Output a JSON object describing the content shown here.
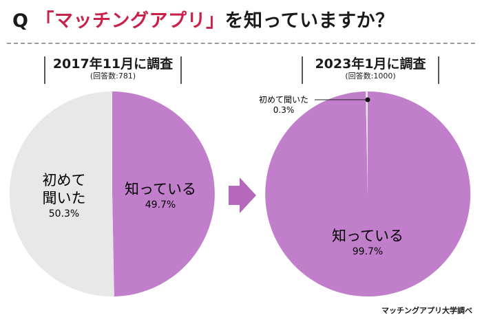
{
  "title": {
    "prefix": "Q",
    "keyword": "「マッチングアプリ」",
    "suffix": "を知っていますか？"
  },
  "colors": {
    "aware": "#c17ecb",
    "heard": "#e8e8e8",
    "accent": "#c8224a",
    "arrow": "#b668bd"
  },
  "chart_data": [
    {
      "type": "pie",
      "title": "2017年11月に調査",
      "subtitle": "(回答数:781)",
      "slices": [
        {
          "label": "知っている",
          "value": 49.7,
          "display": "49.7%",
          "color": "#c17ecb"
        },
        {
          "label": "初めて聞いた",
          "value": 50.3,
          "display": "50.3%",
          "color": "#e8e8e8"
        }
      ]
    },
    {
      "type": "pie",
      "title": "2023年1月に調査",
      "subtitle": "(回答数:1000)",
      "slices": [
        {
          "label": "知っている",
          "value": 99.7,
          "display": "99.7%",
          "color": "#c17ecb"
        },
        {
          "label": "初めて聞いた",
          "value": 0.3,
          "display": "0.3%",
          "color": "#e8e8e8"
        }
      ]
    }
  ],
  "labels": {
    "c1_aware_label": "知っている",
    "c1_aware_value": "49.7%",
    "c1_heard_line1": "初めて",
    "c1_heard_line2": "聞いた",
    "c1_heard_value": "50.3%",
    "c2_aware_label": "知っている",
    "c2_aware_value": "99.7%",
    "c2_heard_label": "初めて聞いた",
    "c2_heard_value": "0.3%"
  },
  "credit": "マッチングアプリ大学調べ"
}
